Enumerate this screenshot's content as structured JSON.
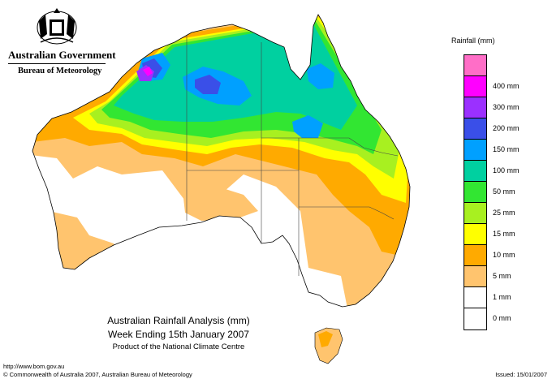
{
  "header": {
    "government": "Australian Government",
    "bureau": "Bureau of Meteorology"
  },
  "legend": {
    "title": "Rainfall (mm)",
    "items": [
      {
        "label": "",
        "color": "#ff6ec7"
      },
      {
        "label": "400 mm",
        "color": "#ff00ff"
      },
      {
        "label": "300 mm",
        "color": "#9b30ff"
      },
      {
        "label": "200 mm",
        "color": "#3a4fe8"
      },
      {
        "label": "150 mm",
        "color": "#00a0ff"
      },
      {
        "label": "100 mm",
        "color": "#00d0a0"
      },
      {
        "label": "50 mm",
        "color": "#32e632"
      },
      {
        "label": "25 mm",
        "color": "#a8f020"
      },
      {
        "label": "15 mm",
        "color": "#ffff00"
      },
      {
        "label": "10 mm",
        "color": "#ffaa00"
      },
      {
        "label": "5 mm",
        "color": "#ffc46e"
      },
      {
        "label": "1 mm",
        "color": "#ffffff"
      },
      {
        "label": "0 mm",
        "color": "#ffffff"
      }
    ]
  },
  "title": {
    "line1": "Australian Rainfall Analysis (mm)",
    "line2": "Week Ending 15th January 2007",
    "line3": "Product of the National Climate Centre"
  },
  "footer": {
    "url": "http://www.bom.gov.au",
    "copyright": "© Commonwealth of Australia 2007, Australian Bureau of Meteorology",
    "issued": "Issued: 15/01/2007"
  },
  "colors": {
    "r1": "#ffc46e",
    "r5": "#ffaa00",
    "r10": "#ffff00",
    "r15": "#a8f020",
    "r25": "#32e632",
    "r50": "#00d0a0",
    "r100": "#00a0ff",
    "r150": "#3a4fe8",
    "r200": "#9b30ff",
    "r300": "#ff00ff"
  }
}
